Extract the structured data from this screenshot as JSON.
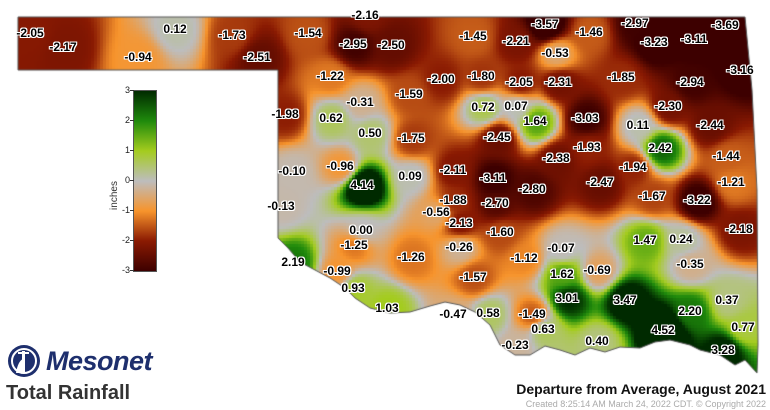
{
  "title": "Total Rainfall",
  "subtitle": "Departure from Average, August 2021",
  "created": "Created 8:25:14 AM March 24, 2022 CDT. © Copyright 2022",
  "logo": {
    "text": "Mesonet",
    "icon": "mesonet-tower-logo",
    "color": "#1e2f6d"
  },
  "legend": {
    "unit": "inches",
    "ticks": [
      "3",
      "2",
      "1",
      "0",
      "-1",
      "-2",
      "-3"
    ],
    "range": [
      -3,
      3
    ],
    "colors": {
      "-3": "#3d0000",
      "-2": "#8a1a02",
      "-1": "#f7942c",
      "0": "#bdbdbd",
      "1": "#a4cc1e",
      "2": "#1f8a0c",
      "3": "#002a00"
    }
  },
  "stations": [
    "-2.05",
    "-2.17",
    "0.12",
    "-0.94",
    "-1.73",
    "-2.51",
    "-1.54",
    "-2.16",
    "-2.95",
    "-2.50",
    "-1.45",
    "-2.21",
    "-3.57",
    "-1.46",
    "-0.53",
    "-2.97",
    "-3.23",
    "-3.11",
    "-3.69",
    "-1.22",
    "-2.00",
    "-1.80",
    "-2.05",
    "-2.31",
    "-1.85",
    "-2.94",
    "-3.16",
    "-1.98",
    "-0.31",
    "0.62",
    "0.50",
    "-1.59",
    "0.72",
    "0.07",
    "1.64",
    "-3.03",
    "0.11",
    "-2.30",
    "-2.44",
    "-1.75",
    "-2.45",
    "-1.93",
    "2.42",
    "-2.38",
    "-1.44",
    "-0.10",
    "-0.96",
    "0.09",
    "-2.11",
    "-3.11",
    "-2.80",
    "-1.94",
    "-2.47",
    "-1.21",
    "4.14",
    "-1.88",
    "-2.70",
    "-1.67",
    "-3.22",
    "-0.13",
    "-0.56",
    "-2.13",
    "-1.60",
    "0.00",
    "-2.18",
    "-1.25",
    "-0.26",
    "-0.07",
    "1.47",
    "0.24",
    "-1.12",
    "2.19",
    "-1.26",
    "-0.99",
    "-1.57",
    "1.62",
    "-0.69",
    "-0.35",
    "0.93",
    "3.01",
    "3.47",
    "0.37",
    "1.03",
    "-0.47",
    "0.58",
    "-1.49",
    "2.20",
    "0.63",
    "4.52",
    "0.77",
    "-0.23",
    "0.40",
    "3.28"
  ]
}
